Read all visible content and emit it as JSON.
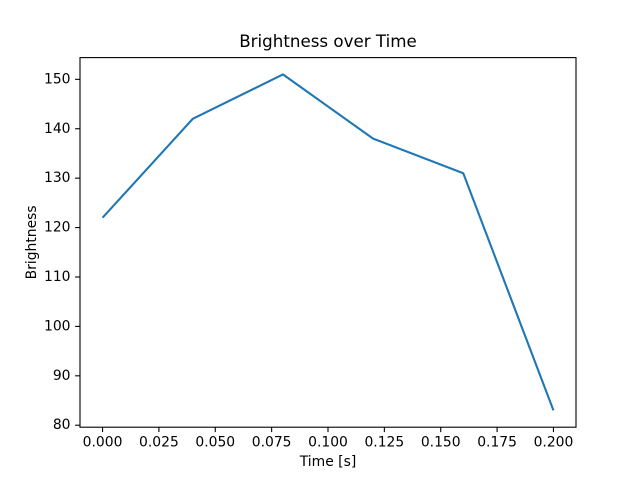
{
  "chart_data": {
    "type": "line",
    "title": "Brightness over Time",
    "xlabel": "Time [s]",
    "ylabel": "Brightness",
    "x": [
      0.0,
      0.04,
      0.08,
      0.12,
      0.16,
      0.2
    ],
    "y": [
      122,
      142,
      151,
      138,
      131,
      83
    ],
    "xlim": [
      -0.01,
      0.21
    ],
    "ylim": [
      79.6,
      154.4
    ],
    "xtick_values": [
      0.0,
      0.025,
      0.05,
      0.075,
      0.1,
      0.125,
      0.15,
      0.175,
      0.2
    ],
    "xtick_labels": [
      "0.000",
      "0.025",
      "0.050",
      "0.075",
      "0.100",
      "0.125",
      "0.150",
      "0.175",
      "0.200"
    ],
    "ytick_values": [
      80,
      90,
      100,
      110,
      120,
      130,
      140,
      150
    ],
    "ytick_labels": [
      "80",
      "90",
      "100",
      "110",
      "120",
      "130",
      "140",
      "150"
    ],
    "grid": false,
    "legend": "none",
    "line_color": "#1f77b4",
    "axes_color": "#000000",
    "background_color": "#ffffff"
  }
}
